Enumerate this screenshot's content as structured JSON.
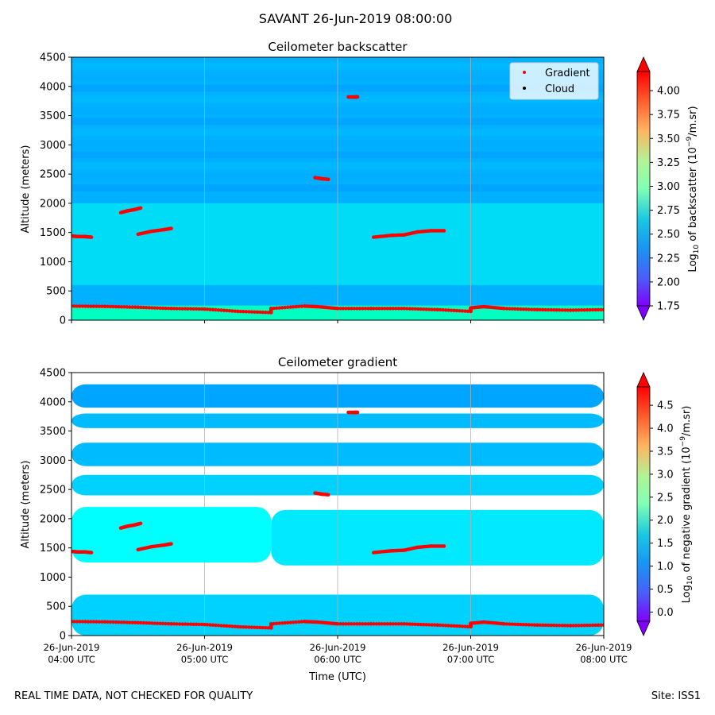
{
  "figure": {
    "suptitle": "SAVANT 26-Jun-2019 08:00:00",
    "footer_left": "REAL TIME DATA, NOT CHECKED FOR QUALITY",
    "footer_right": "Site: ISS1"
  },
  "chart_data": [
    {
      "type": "heatmap",
      "title": "Ceilometer backscatter",
      "ylabel": "Altitude (meters)",
      "xlabel": "",
      "xlim": [
        0,
        4
      ],
      "ylim": [
        0,
        4500
      ],
      "yticks": [
        0,
        500,
        1000,
        1500,
        2000,
        2500,
        3000,
        3500,
        4000,
        4500
      ],
      "xticks": [
        0,
        1,
        2,
        3,
        4
      ],
      "xtick_labels": [],
      "grid": "vertical",
      "colorbar": {
        "label": "Log10 of backscatter (10^-9/m.sr)",
        "range": [
          1.75,
          4.2
        ],
        "ticks": [
          "4.00",
          "3.75",
          "3.50",
          "3.25",
          "3.00",
          "2.75",
          "2.50",
          "2.25",
          "2.00",
          "1.75"
        ],
        "tick_values": [
          4.0,
          3.75,
          3.5,
          3.25,
          3.0,
          2.75,
          2.5,
          2.25,
          2.0,
          1.75
        ],
        "extend": "both"
      },
      "legend": {
        "position": "top-right",
        "entries": [
          {
            "label": "Gradient",
            "color": "#ff0000"
          },
          {
            "label": "Cloud",
            "color": "#000000"
          }
        ]
      },
      "fields": {
        "background_value": 2.4,
        "surface_layer": {
          "altitude_max": 250,
          "value": 2.7
        },
        "aerosol_layer": {
          "altitude_range": [
            600,
            2000
          ],
          "value": 2.6
        }
      },
      "gradient_series": [
        {
          "name": "Gradient",
          "x": [
            0.0,
            0.05,
            0.1,
            0.15
          ],
          "y": [
            1440,
            1430,
            1430,
            1420
          ]
        },
        {
          "name": "Gradient",
          "x": [
            0.37,
            0.42,
            0.47,
            0.52
          ],
          "y": [
            1840,
            1870,
            1890,
            1920
          ]
        },
        {
          "name": "Gradient",
          "x": [
            0.5,
            0.6,
            0.7,
            0.75
          ],
          "y": [
            1470,
            1520,
            1550,
            1570
          ]
        },
        {
          "name": "Gradient",
          "x": [
            1.83,
            1.88,
            1.93
          ],
          "y": [
            2440,
            2420,
            2410
          ]
        },
        {
          "name": "Gradient",
          "x": [
            2.08,
            2.13,
            2.15
          ],
          "y": [
            3820,
            3820,
            3820
          ]
        },
        {
          "name": "Gradient",
          "x": [
            2.27,
            2.4,
            2.5,
            2.6,
            2.7,
            2.8
          ],
          "y": [
            1420,
            1450,
            1460,
            1510,
            1530,
            1530
          ]
        },
        {
          "name": "Gradient",
          "x": [
            0.0,
            0.25,
            0.5,
            0.75,
            1.0,
            1.25,
            1.5,
            1.5,
            1.75,
            1.85,
            2.0,
            2.25,
            2.5,
            2.75,
            3.0,
            3.0,
            3.1,
            3.25,
            3.5,
            3.75,
            4.0
          ],
          "y": [
            240,
            235,
            220,
            200,
            190,
            150,
            130,
            200,
            240,
            230,
            200,
            200,
            200,
            180,
            150,
            210,
            230,
            200,
            180,
            170,
            180
          ]
        }
      ]
    },
    {
      "type": "heatmap",
      "title": "Ceilometer gradient",
      "ylabel": "Altitude (meters)",
      "xlabel": "Time (UTC)",
      "xlim": [
        0,
        4
      ],
      "ylim": [
        0,
        4500
      ],
      "yticks": [
        0,
        500,
        1000,
        1500,
        2000,
        2500,
        3000,
        3500,
        4000,
        4500
      ],
      "xticks": [
        0,
        1,
        2,
        3,
        4
      ],
      "xtick_labels": [
        [
          "26-Jun-2019",
          "04:00 UTC"
        ],
        [
          "26-Jun-2019",
          "05:00 UTC"
        ],
        [
          "26-Jun-2019",
          "06:00 UTC"
        ],
        [
          "26-Jun-2019",
          "07:00 UTC"
        ],
        [
          "26-Jun-2019",
          "08:00 UTC"
        ]
      ],
      "grid": "vertical",
      "colorbar": {
        "label": "Log10 of negative gradient (10^-9/m.sr)",
        "range": [
          -0.2,
          4.9
        ],
        "ticks": [
          "4.5",
          "4.0",
          "3.5",
          "3.0",
          "2.5",
          "2.0",
          "1.5",
          "1.0",
          "0.5",
          "0.0"
        ],
        "tick_values": [
          4.5,
          4.0,
          3.5,
          3.0,
          2.5,
          2.0,
          1.5,
          1.0,
          0.5,
          0.0
        ],
        "extend": "both"
      },
      "bands": [
        {
          "x_range": [
            0.0,
            4.0
          ],
          "alt_range": [
            0,
            700
          ],
          "value": 1.3
        },
        {
          "x_range": [
            0.0,
            1.5
          ],
          "alt_range": [
            1250,
            2200
          ],
          "value": 1.5
        },
        {
          "x_range": [
            1.5,
            4.0
          ],
          "alt_range": [
            1200,
            2150
          ],
          "value": 1.4
        },
        {
          "x_range": [
            0.0,
            4.0
          ],
          "alt_range": [
            2400,
            2750
          ],
          "value": 1.3
        },
        {
          "x_range": [
            0.0,
            4.0
          ],
          "alt_range": [
            2900,
            3300
          ],
          "value": 1.2
        },
        {
          "x_range": [
            0.0,
            4.0
          ],
          "alt_range": [
            3550,
            3800
          ],
          "value": 1.2
        },
        {
          "x_range": [
            0.0,
            4.0
          ],
          "alt_range": [
            3900,
            4300
          ],
          "value": 1.1
        }
      ],
      "gradient_series": "same as backscatter panel"
    }
  ]
}
